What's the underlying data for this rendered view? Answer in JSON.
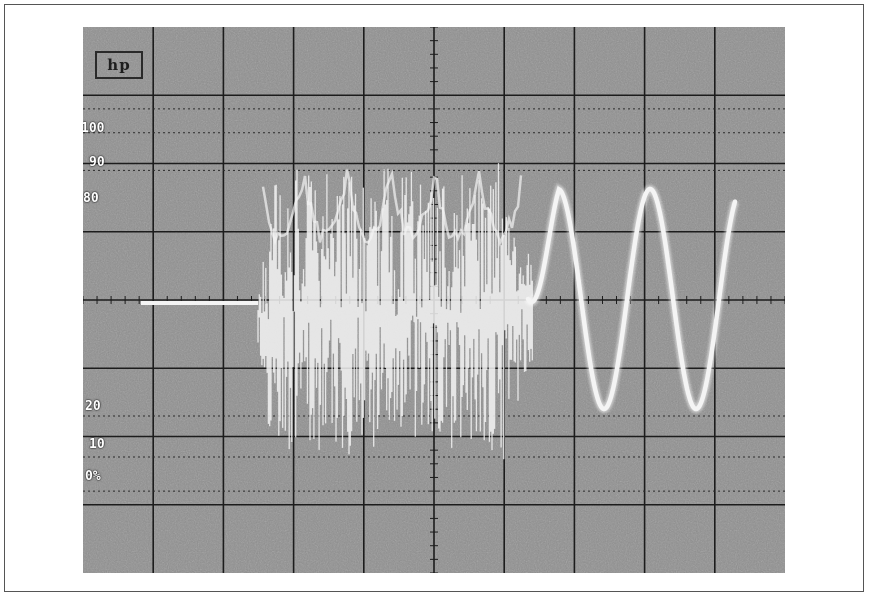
{
  "screen": {
    "logo_label": "hp",
    "graticule": {
      "horizontal_divisions": 10,
      "vertical_divisions": 8,
      "grid": true
    },
    "percent_markers": [
      "100",
      "90",
      "80",
      "20",
      "10",
      "0%"
    ],
    "colors": {
      "screen_background": "#8a8a8a",
      "graticule": "#1c1c1c",
      "trace": "#f4f4f4"
    }
  }
}
